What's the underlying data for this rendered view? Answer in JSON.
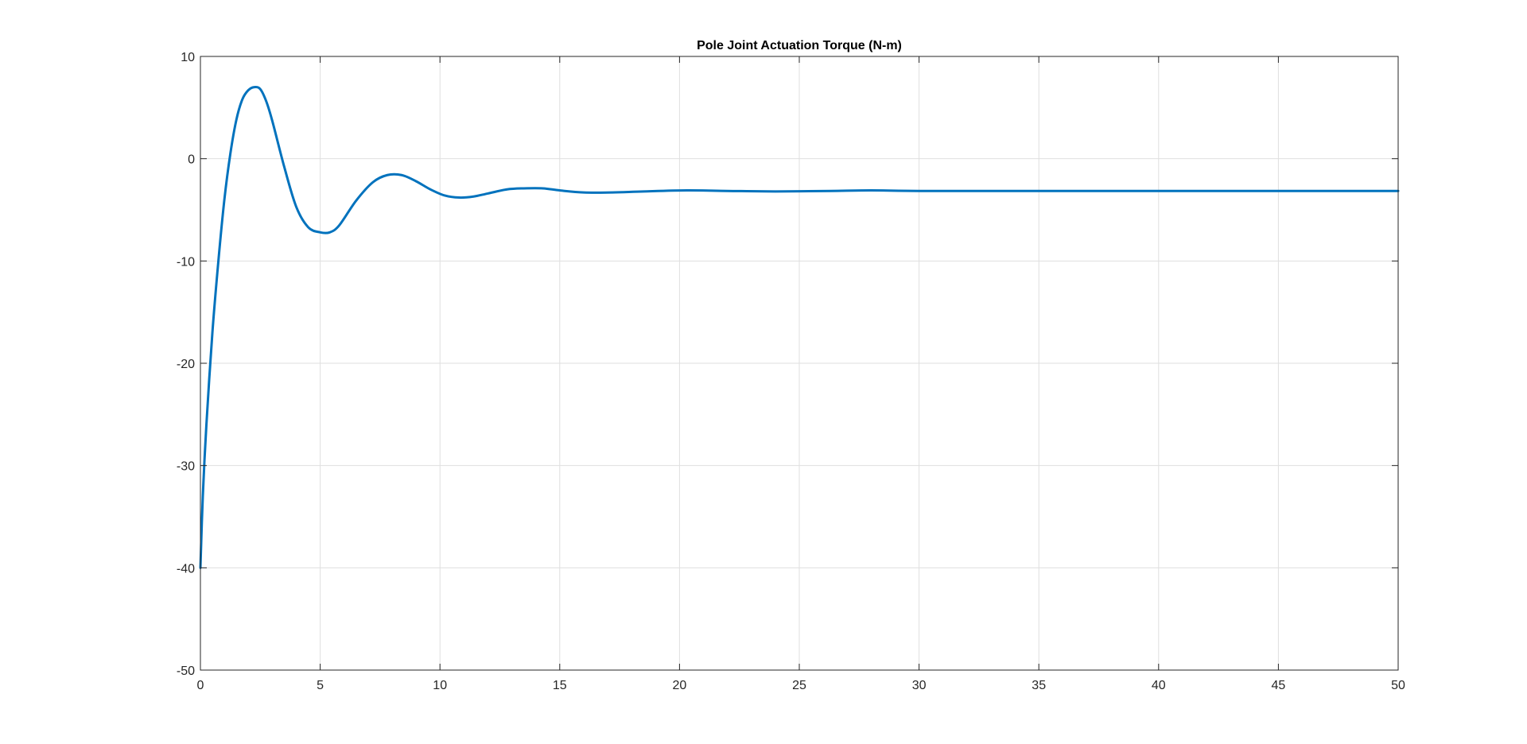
{
  "chart_data": {
    "type": "line",
    "title": "Pole Joint Actuation Torque (N-m)",
    "xlabel": "",
    "ylabel": "",
    "xlim": [
      0,
      50
    ],
    "ylim": [
      -50,
      10
    ],
    "xticks": [
      0,
      5,
      10,
      15,
      20,
      25,
      30,
      35,
      40,
      45,
      50
    ],
    "yticks": [
      -50,
      -40,
      -30,
      -20,
      -10,
      0,
      10
    ],
    "grid": true,
    "series": [
      {
        "color": "#0072BD",
        "x": [
          0,
          0.1,
          0.25,
          0.5,
          0.75,
          1.0,
          1.25,
          1.5,
          1.75,
          2.0,
          2.25,
          2.5,
          2.75,
          3.0,
          3.5,
          4.0,
          4.5,
          5.0,
          5.4,
          5.8,
          6.5,
          7.2,
          7.8,
          8.4,
          9.0,
          9.6,
          10.2,
          10.8,
          11.4,
          12.0,
          12.8,
          13.5,
          14.3,
          15.0,
          16.0,
          17.2,
          18.5,
          20.3,
          22.0,
          24.0,
          26.3,
          28.0,
          30.0,
          35.0,
          40.0,
          45.0,
          50.0
        ],
        "values": [
          -40,
          -33,
          -26,
          -17,
          -10,
          -4,
          0.5,
          3.8,
          5.8,
          6.7,
          7.0,
          6.8,
          5.6,
          3.7,
          -0.8,
          -4.7,
          -6.7,
          -7.2,
          -7.2,
          -6.5,
          -4.1,
          -2.3,
          -1.6,
          -1.6,
          -2.2,
          -3.0,
          -3.6,
          -3.8,
          -3.7,
          -3.4,
          -3.0,
          -2.9,
          -2.9,
          -3.1,
          -3.3,
          -3.3,
          -3.2,
          -3.1,
          -3.15,
          -3.2,
          -3.15,
          -3.1,
          -3.15,
          -3.15,
          -3.15,
          -3.15,
          -3.15
        ]
      }
    ]
  }
}
